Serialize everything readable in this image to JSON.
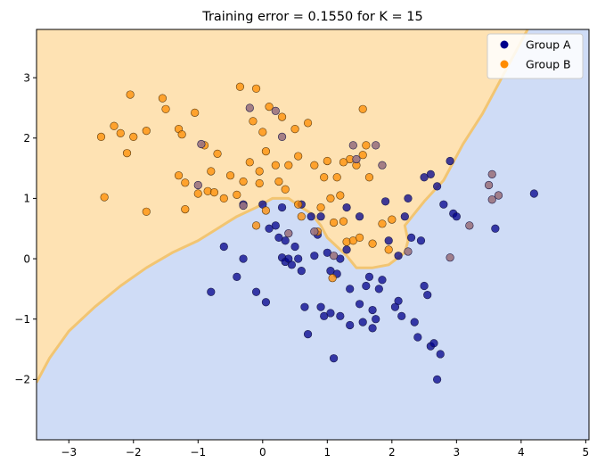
{
  "chart_data": {
    "type": "scatter",
    "title": "Training error = 0.1550 for K = 15",
    "xlabel": "",
    "ylabel": "",
    "xlim": [
      -3.5,
      5.05
    ],
    "ylim": [
      -3.0,
      3.8
    ],
    "x_ticks": [
      -3,
      -2,
      -1,
      0,
      1,
      2,
      3,
      4,
      5
    ],
    "y_ticks": [
      -2,
      -1,
      0,
      1,
      2,
      3
    ],
    "grid": false,
    "legend_position": "top-right",
    "background_regions": {
      "group_b_region_color": "#fee2b3",
      "group_a_region_color": "#cfdcf6",
      "boundary_color": "#f2c572",
      "boundary": [
        [
          -3.5,
          -2.05
        ],
        [
          -3.3,
          -1.65
        ],
        [
          -3.0,
          -1.2
        ],
        [
          -2.6,
          -0.8
        ],
        [
          -2.2,
          -0.45
        ],
        [
          -1.8,
          -0.15
        ],
        [
          -1.4,
          0.1
        ],
        [
          -1.0,
          0.3
        ],
        [
          -0.7,
          0.5
        ],
        [
          -0.4,
          0.7
        ],
        [
          -0.1,
          0.85
        ],
        [
          0.15,
          1.0
        ],
        [
          0.4,
          1.0
        ],
        [
          0.6,
          0.85
        ],
        [
          0.75,
          0.75
        ],
        [
          0.9,
          0.55
        ],
        [
          1.0,
          0.35
        ],
        [
          1.1,
          0.25
        ],
        [
          1.3,
          0.05
        ],
        [
          1.45,
          -0.15
        ],
        [
          1.7,
          -0.15
        ],
        [
          1.95,
          -0.1
        ],
        [
          2.2,
          0.1
        ],
        [
          2.25,
          0.3
        ],
        [
          2.2,
          0.55
        ],
        [
          2.35,
          0.75
        ],
        [
          2.5,
          0.95
        ],
        [
          2.8,
          1.3
        ],
        [
          3.1,
          1.9
        ],
        [
          3.4,
          2.4
        ],
        [
          3.6,
          2.8
        ],
        [
          3.8,
          3.2
        ],
        [
          3.95,
          3.5
        ],
        [
          4.1,
          3.8
        ]
      ]
    },
    "series": [
      {
        "name": "Group A",
        "color": "#00008b",
        "points": [
          [
            -0.8,
            -0.55
          ],
          [
            -0.4,
            -0.3
          ],
          [
            -0.3,
            0.0
          ],
          [
            -0.6,
            0.2
          ],
          [
            -0.1,
            -0.55
          ],
          [
            0.05,
            -0.72
          ],
          [
            0.1,
            0.5
          ],
          [
            0.2,
            0.55
          ],
          [
            0.25,
            0.35
          ],
          [
            0.3,
            0.02
          ],
          [
            0.35,
            0.3
          ],
          [
            0.35,
            -0.05
          ],
          [
            0.4,
            0.0
          ],
          [
            0.45,
            -0.1
          ],
          [
            0.5,
            0.2
          ],
          [
            0.55,
            0.0
          ],
          [
            0.6,
            -0.2
          ],
          [
            0.65,
            -0.8
          ],
          [
            0.7,
            -1.25
          ],
          [
            0.75,
            0.7
          ],
          [
            0.8,
            0.05
          ],
          [
            0.85,
            0.4
          ],
          [
            0.9,
            -0.8
          ],
          [
            0.95,
            -0.95
          ],
          [
            1.0,
            0.1
          ],
          [
            1.05,
            -0.2
          ],
          [
            1.05,
            -0.9
          ],
          [
            1.1,
            -1.65
          ],
          [
            1.15,
            -0.25
          ],
          [
            1.2,
            0.0
          ],
          [
            1.2,
            -0.95
          ],
          [
            1.3,
            0.15
          ],
          [
            1.35,
            -0.5
          ],
          [
            1.35,
            -1.1
          ],
          [
            1.5,
            -0.75
          ],
          [
            1.55,
            -1.05
          ],
          [
            1.6,
            -0.45
          ],
          [
            1.65,
            -0.3
          ],
          [
            1.7,
            -0.85
          ],
          [
            1.75,
            -1.0
          ],
          [
            1.8,
            -0.5
          ],
          [
            1.85,
            -0.35
          ],
          [
            1.9,
            0.95
          ],
          [
            2.05,
            -0.8
          ],
          [
            2.1,
            -0.7
          ],
          [
            2.15,
            -0.95
          ],
          [
            2.2,
            0.7
          ],
          [
            2.25,
            1.0
          ],
          [
            2.3,
            0.35
          ],
          [
            2.35,
            -1.05
          ],
          [
            2.4,
            -1.3
          ],
          [
            2.5,
            1.35
          ],
          [
            2.5,
            -0.45
          ],
          [
            2.55,
            -0.6
          ],
          [
            2.6,
            1.4
          ],
          [
            2.6,
            -1.45
          ],
          [
            2.65,
            -1.4
          ],
          [
            2.7,
            1.2
          ],
          [
            2.75,
            -1.58
          ],
          [
            2.8,
            0.9
          ],
          [
            2.9,
            1.62
          ],
          [
            2.95,
            0.75
          ],
          [
            3.0,
            0.7
          ],
          [
            3.6,
            0.5
          ],
          [
            4.2,
            1.08
          ],
          [
            -0.3,
            0.9
          ],
          [
            0.0,
            0.9
          ],
          [
            0.3,
            0.85
          ],
          [
            0.6,
            0.9
          ],
          [
            0.9,
            0.7
          ],
          [
            1.3,
            0.85
          ],
          [
            1.5,
            0.7
          ],
          [
            1.95,
            0.3
          ],
          [
            2.1,
            0.05
          ],
          [
            2.45,
            0.3
          ],
          [
            2.7,
            -2.0
          ],
          [
            1.7,
            -1.15
          ]
        ]
      },
      {
        "name": "Group B",
        "color": "#ff8c00",
        "points": [
          [
            -2.5,
            2.02
          ],
          [
            -2.3,
            2.2
          ],
          [
            -2.2,
            2.08
          ],
          [
            -2.1,
            1.75
          ],
          [
            -2.05,
            2.72
          ],
          [
            -2.0,
            2.02
          ],
          [
            -1.8,
            2.12
          ],
          [
            -1.8,
            0.78
          ],
          [
            -1.55,
            2.66
          ],
          [
            -1.5,
            2.48
          ],
          [
            -1.3,
            2.15
          ],
          [
            -1.3,
            1.38
          ],
          [
            -1.25,
            2.06
          ],
          [
            -1.2,
            1.26
          ],
          [
            -1.2,
            0.82
          ],
          [
            -1.05,
            2.42
          ],
          [
            -1.0,
            1.08
          ],
          [
            -0.9,
            1.88
          ],
          [
            -0.8,
            1.45
          ],
          [
            -0.7,
            1.74
          ],
          [
            -0.6,
            1.0
          ],
          [
            -0.5,
            1.38
          ],
          [
            -0.4,
            1.06
          ],
          [
            -0.35,
            2.85
          ],
          [
            -0.3,
            1.28
          ],
          [
            -0.2,
            1.6
          ],
          [
            -0.15,
            2.28
          ],
          [
            -0.1,
            2.82
          ],
          [
            -0.05,
            1.45
          ],
          [
            -0.05,
            1.25
          ],
          [
            0.0,
            2.1
          ],
          [
            0.05,
            1.78
          ],
          [
            0.1,
            2.52
          ],
          [
            0.2,
            1.55
          ],
          [
            0.25,
            1.28
          ],
          [
            0.3,
            2.35
          ],
          [
            0.35,
            1.15
          ],
          [
            0.4,
            1.55
          ],
          [
            0.5,
            2.15
          ],
          [
            0.55,
            1.7
          ],
          [
            0.6,
            0.7
          ],
          [
            0.7,
            2.25
          ],
          [
            0.8,
            1.55
          ],
          [
            0.85,
            0.45
          ],
          [
            0.9,
            0.85
          ],
          [
            0.95,
            1.35
          ],
          [
            1.0,
            1.62
          ],
          [
            1.05,
            1.0
          ],
          [
            1.1,
            0.6
          ],
          [
            1.15,
            1.35
          ],
          [
            1.2,
            1.05
          ],
          [
            1.25,
            0.62
          ],
          [
            1.3,
            0.28
          ],
          [
            1.35,
            1.65
          ],
          [
            1.4,
            0.3
          ],
          [
            1.45,
            1.55
          ],
          [
            1.5,
            0.35
          ],
          [
            1.55,
            2.48
          ],
          [
            1.6,
            1.88
          ],
          [
            1.65,
            1.35
          ],
          [
            1.7,
            0.25
          ],
          [
            1.85,
            0.58
          ],
          [
            1.95,
            0.15
          ],
          [
            2.0,
            0.65
          ],
          [
            -2.45,
            1.02
          ],
          [
            -0.85,
            1.12
          ],
          [
            -0.75,
            1.1
          ],
          [
            -0.1,
            0.55
          ],
          [
            0.05,
            0.8
          ],
          [
            1.08,
            -0.32
          ],
          [
            1.55,
            1.72
          ],
          [
            0.55,
            0.9
          ],
          [
            1.25,
            1.6
          ]
        ]
      },
      {
        "name": "",
        "color": "#9a7380",
        "points": [
          [
            -1.0,
            1.22
          ],
          [
            -0.2,
            2.5
          ],
          [
            0.2,
            2.45
          ],
          [
            0.3,
            2.02
          ],
          [
            -0.95,
            1.9
          ],
          [
            -0.3,
            0.88
          ],
          [
            1.1,
            0.05
          ],
          [
            1.4,
            1.88
          ],
          [
            1.45,
            1.65
          ],
          [
            1.75,
            1.88
          ],
          [
            1.85,
            1.55
          ],
          [
            2.25,
            0.12
          ],
          [
            3.2,
            0.55
          ],
          [
            3.5,
            1.22
          ],
          [
            3.55,
            1.4
          ],
          [
            3.55,
            0.98
          ],
          [
            3.65,
            1.05
          ],
          [
            2.9,
            0.02
          ],
          [
            0.4,
            0.42
          ],
          [
            0.8,
            0.45
          ]
        ]
      }
    ]
  }
}
